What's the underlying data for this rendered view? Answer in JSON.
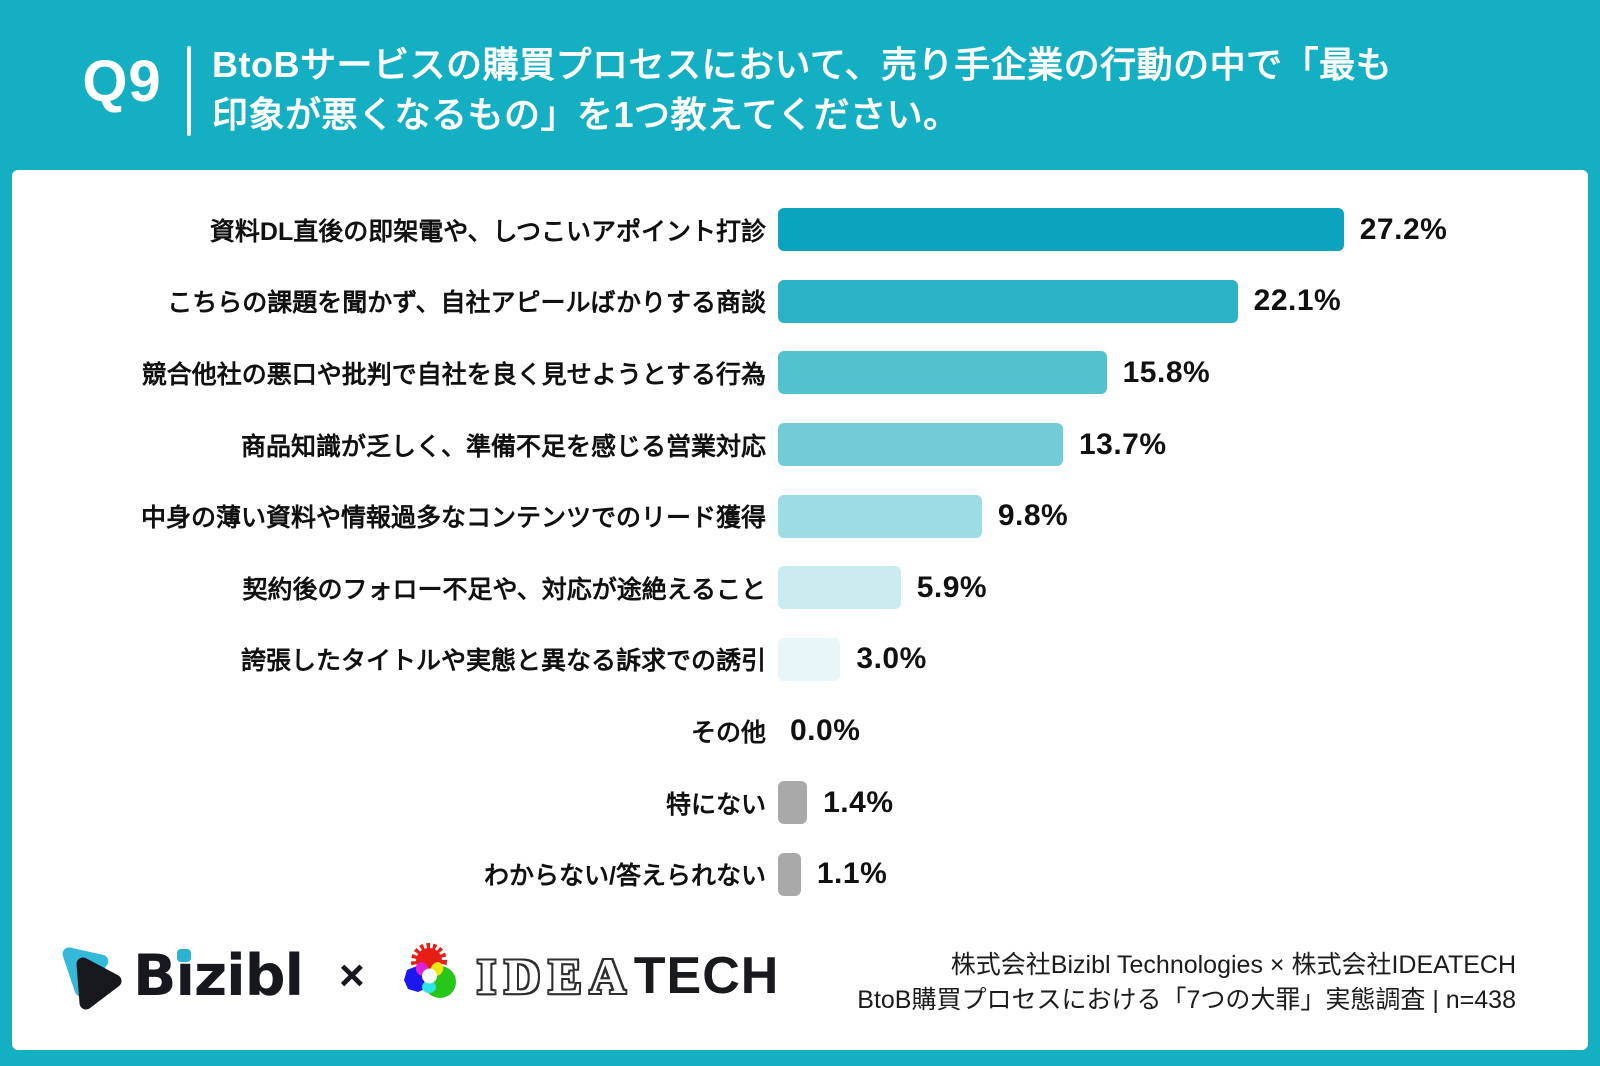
{
  "header": {
    "q_label": "Q9",
    "title_lines": [
      "BtoBサービスの購買プロセスにおいて、売り手企業の行動の中で「最も",
      "印象が悪くなるもの」を1つ教えてください。"
    ]
  },
  "chart_data": {
    "type": "bar",
    "orientation": "horizontal",
    "unit": "%",
    "xlim": [
      0,
      28
    ],
    "grid": false,
    "categories": [
      "資料DL直後の即架電や、しつこいアポイント打診",
      "こちらの課題を聞かず、自社アピールばかりする商談",
      "競合他社の悪口や批判で自社を良く見せようとする行為",
      "商品知識が乏しく、準備不足を感じる営業対応",
      "中身の薄い資料や情報過多なコンテンツでのリード獲得",
      "契約後のフォロー不足や、対応が途絶えること",
      "誇張したタイトルや実態と異なる訴求での誘引",
      "その他",
      "特にない",
      "わからない/答えられない"
    ],
    "values": [
      27.2,
      22.1,
      15.8,
      13.7,
      9.8,
      5.9,
      3.0,
      0.0,
      1.4,
      1.1
    ],
    "value_labels": [
      "27.2%",
      "22.1%",
      "15.8%",
      "13.7%",
      "9.8%",
      "5.9%",
      "3.0%",
      "0.0%",
      "1.4%",
      "1.1%"
    ],
    "bar_colors": [
      "#0aa4bc",
      "#2bb3c5",
      "#52c2cf",
      "#72ccd7",
      "#9cdce4",
      "#c9ecf1",
      "#e8f6f9",
      null,
      "#a9a9a9",
      "#a9a9a9"
    ]
  },
  "footer": {
    "bizibl_wordmark": "Bizibl",
    "separator": "×",
    "ideatech_outline": "IDEA",
    "ideatech_solid": "TECH",
    "source_line1": "株式会社Bizibl Technologies × 株式会社IDEATECH",
    "source_line2": "BtoB購買プロセスにおける「7つの大罪」実態調査 | n=438"
  },
  "colors": {
    "background": "#15afc3",
    "panel": "#ffffff",
    "text": "#111111",
    "accent_cyan": "#2db2d2",
    "gray_bar": "#a9a9a9"
  }
}
